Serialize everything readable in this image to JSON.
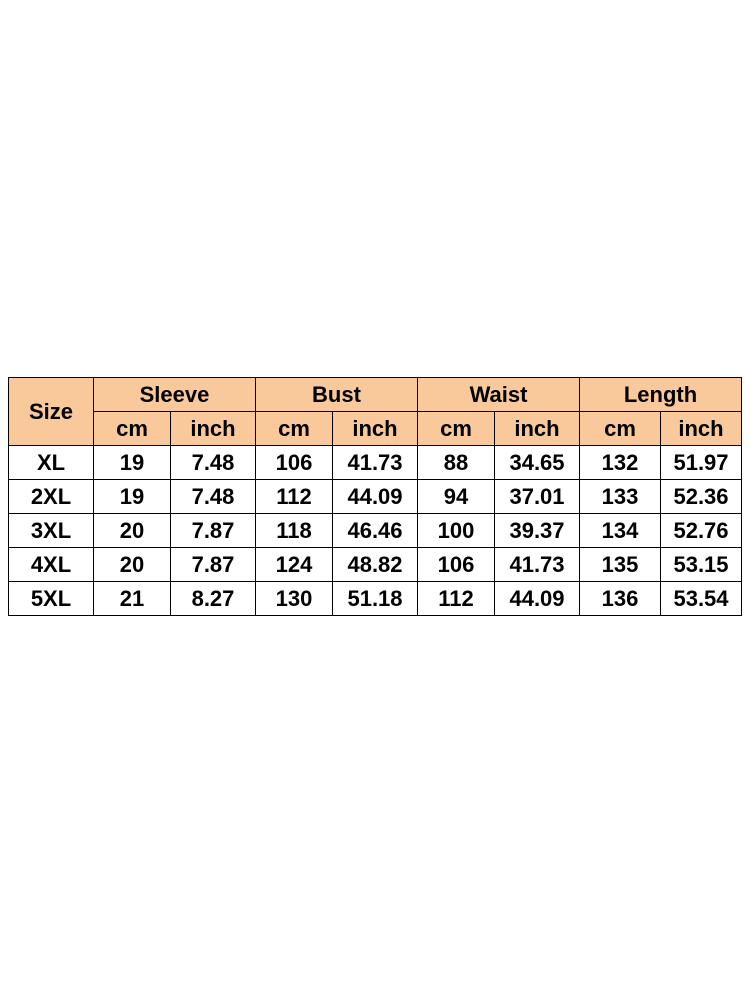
{
  "table": {
    "corner": "Size",
    "groups": [
      "Sleeve",
      "Bust",
      "Waist",
      "Length"
    ],
    "units": [
      "cm",
      "inch",
      "cm",
      "inch",
      "cm",
      "inch",
      "cm",
      "inch"
    ],
    "rows": [
      [
        "XL",
        "19",
        "7.48",
        "106",
        "41.73",
        "88",
        "34.65",
        "132",
        "51.97"
      ],
      [
        "2XL",
        "19",
        "7.48",
        "112",
        "44.09",
        "94",
        "37.01",
        "133",
        "52.36"
      ],
      [
        "3XL",
        "20",
        "7.87",
        "118",
        "46.46",
        "100",
        "39.37",
        "134",
        "52.76"
      ],
      [
        "4XL",
        "20",
        "7.87",
        "124",
        "48.82",
        "106",
        "41.73",
        "135",
        "53.15"
      ],
      [
        "5XL",
        "21",
        "8.27",
        "130",
        "51.18",
        "112",
        "44.09",
        "136",
        "53.54"
      ]
    ]
  }
}
